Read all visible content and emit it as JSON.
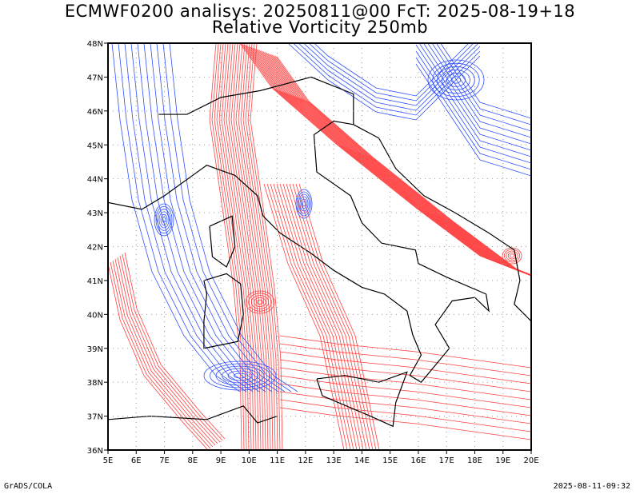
{
  "title": {
    "line1": "ECMWF0200 analisys: 20250811@00 FcT: 2025-08-19+18",
    "line2": "Relative Vorticity 250mb"
  },
  "map": {
    "lon_range": [
      5,
      20
    ],
    "lat_range": [
      36,
      48
    ],
    "lat_labels": [
      "36N",
      "37N",
      "38N",
      "39N",
      "40N",
      "41N",
      "42N",
      "43N",
      "44N",
      "45N",
      "46N",
      "47N",
      "48N"
    ],
    "lon_labels": [
      "5E",
      "6E",
      "7E",
      "8E",
      "9E",
      "10E",
      "11E",
      "12E",
      "13E",
      "14E",
      "15E",
      "16E",
      "17E",
      "18E",
      "19E",
      "20E"
    ],
    "grid": "dotted",
    "colors": {
      "positive_contours": "#ff4040",
      "negative_contours": "#3050ff",
      "coastline": "#000000",
      "grid": "#999999"
    }
  },
  "footer": {
    "left": "GrADS/COLA",
    "right": "2025-08-11-09:32"
  }
}
